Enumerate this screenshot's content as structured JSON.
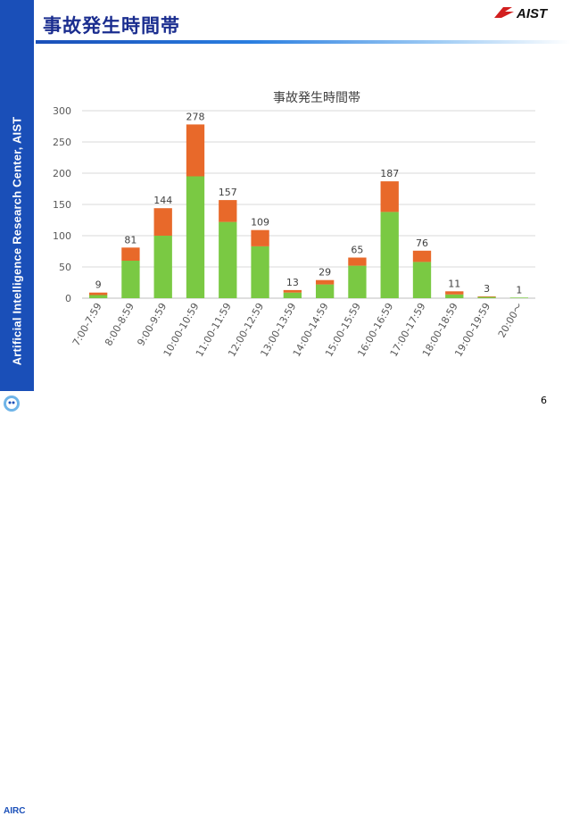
{
  "slide": {
    "title": "事故発生時間帯",
    "sidebar_text": "Artificial Intelligence Research Center, AIST",
    "logo_text": "AIST",
    "airc_label": "AIRC",
    "page_number": "6"
  },
  "colors": {
    "sidebar": "#1a4fb8",
    "title_text": "#1a2d8f",
    "logo_red": "#d21f1f",
    "series_lower": "#7ac943",
    "series_upper": "#e8692a"
  },
  "chart_data": {
    "type": "bar",
    "stacked": true,
    "title": "事故発生時間帯",
    "categories": [
      "7:00-7:59",
      "8:00-8:59",
      "9:00-9:59",
      "10:00-10:59",
      "11:00-11:59",
      "12:00-12:59",
      "13:00-13:59",
      "14:00-14:59",
      "15:00-15:59",
      "16:00-16:59",
      "17:00-17:59",
      "18:00-18:59",
      "19:00-19:59",
      "20:00〜"
    ],
    "series": [
      {
        "color": "#7ac943",
        "values": [
          5,
          60,
          100,
          195,
          122,
          83,
          9,
          22,
          52,
          138,
          58,
          6,
          2,
          1
        ]
      },
      {
        "color": "#e8692a",
        "values": [
          4,
          21,
          44,
          83,
          35,
          26,
          4,
          7,
          13,
          49,
          18,
          5,
          1,
          0
        ]
      }
    ],
    "totals": [
      9,
      81,
      144,
      278,
      157,
      109,
      13,
      29,
      65,
      187,
      76,
      11,
      3,
      1
    ],
    "ylim": [
      0,
      300
    ],
    "yticks": [
      0,
      50,
      100,
      150,
      200,
      250,
      300
    ],
    "grid": true,
    "xlabel": "",
    "ylabel": ""
  }
}
